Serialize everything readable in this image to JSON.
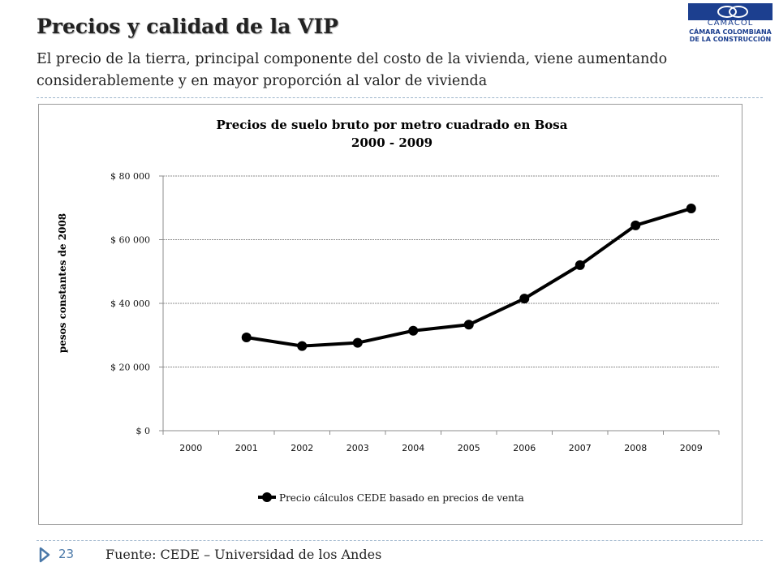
{
  "slide": {
    "title": "Precios y calidad de la VIP",
    "subtitle": "El precio de la tierra, principal componente del costo de la vivienda,  viene aumentando considerablemente y en mayor proporción al valor de vivienda",
    "logo_name": "CAMACOL",
    "logo_line1": "CÁMARA COLOMBIANA",
    "logo_line2": "DE LA CONSTRUCCIÓN",
    "page_number": "23",
    "source": "Fuente: CEDE – Universidad de los Andes",
    "accent_color": "#4a78a8",
    "logo_color": "#1c3f8f"
  },
  "chart_data": {
    "type": "line",
    "title": "Precios de suelo bruto por metro cuadrado en Bosa",
    "subtitle": "2000 - 2009",
    "xlabel": "",
    "ylabel": "pesos constantes de 2008",
    "categories": [
      "2000",
      "2001",
      "2002",
      "2003",
      "2004",
      "2005",
      "2006",
      "2007",
      "2008",
      "2009"
    ],
    "yticks": [
      "$ 0",
      "$ 20 000",
      "$ 40 000",
      "$ 60 000",
      "$ 80 000"
    ],
    "ylim": [
      0,
      80000
    ],
    "grid": true,
    "legend_position": "bottom",
    "line_color": "#000000",
    "series": [
      {
        "name": "Precio cálculos CEDE basado en precios de venta",
        "values": [
          null,
          29300,
          26600,
          27600,
          31400,
          33300,
          41500,
          52000,
          64500,
          69800
        ]
      }
    ]
  }
}
